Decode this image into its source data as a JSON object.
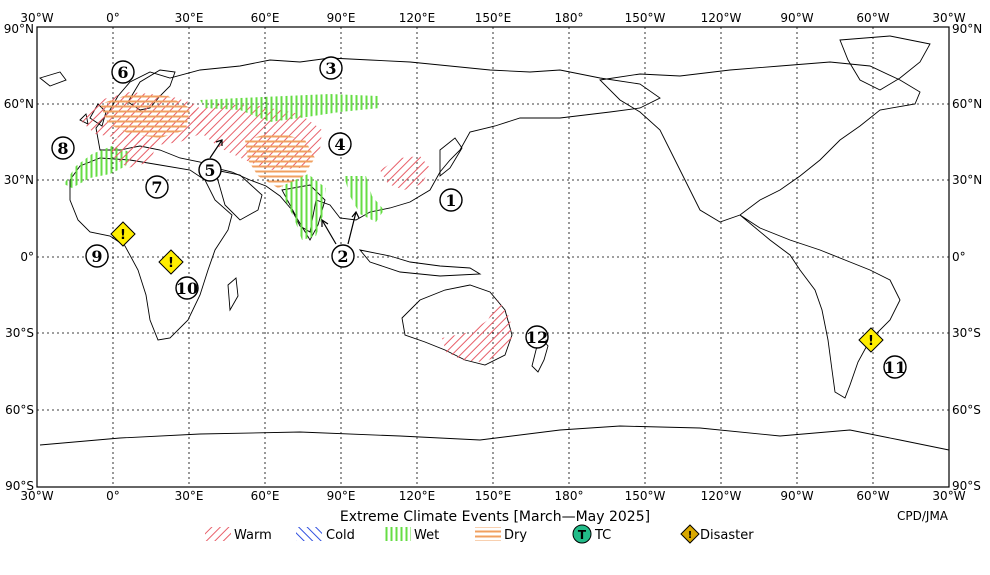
{
  "map": {
    "title": "Extreme Climate Events [March—May 2025]",
    "credit": "CPD/JMA",
    "longitude_ticks": [
      "30°W",
      "0°",
      "30°E",
      "60°E",
      "90°E",
      "120°E",
      "150°E",
      "180°",
      "150°W",
      "120°W",
      "90°W",
      "60°W",
      "30°W"
    ],
    "latitude_ticks": [
      "90°N",
      "60°N",
      "30°N",
      "0°",
      "30°S",
      "60°S",
      "90°S"
    ],
    "legend": {
      "warm": "Warm",
      "cold": "Cold",
      "wet": "Wet",
      "dry": "Dry",
      "tc": "TC",
      "tc_symbol": "T",
      "disaster": "Disaster"
    },
    "colors": {
      "warm": "#e8606a",
      "cold": "#3050e0",
      "wet": "#66dd44",
      "dry": "#f0a060",
      "tc": "#22bb88",
      "disaster_fill": "#ffee00",
      "disaster_legend": "#d9a800"
    },
    "event_labels": [
      "1",
      "2",
      "3",
      "4",
      "5",
      "6",
      "7",
      "8",
      "9",
      "10",
      "11",
      "12"
    ],
    "disaster_symbol": "!"
  }
}
